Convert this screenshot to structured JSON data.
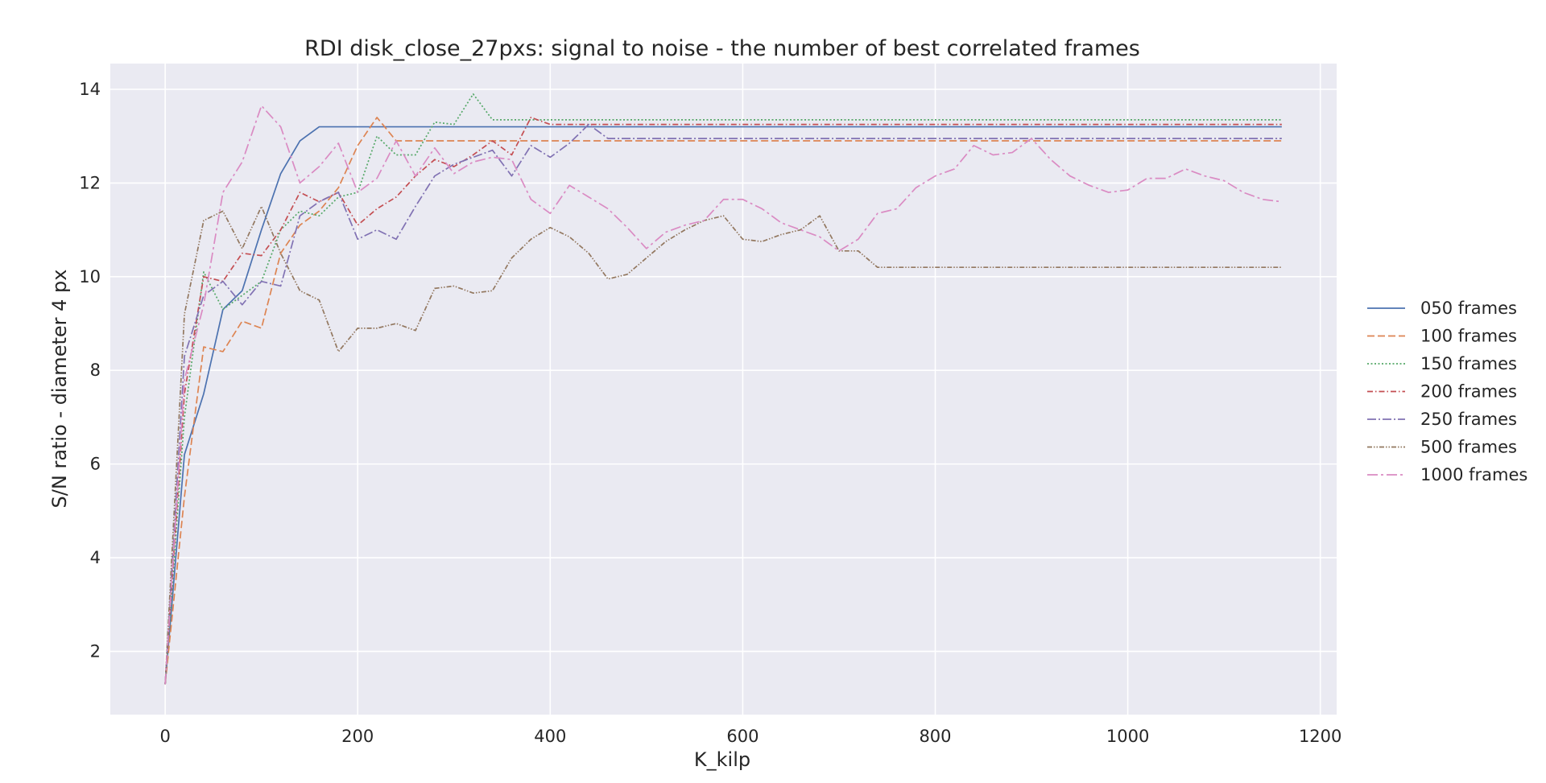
{
  "chart_data": {
    "type": "line",
    "title": "RDI disk_close_27pxs: signal to noise - the number of best correlated frames",
    "xlabel": "K_kilp",
    "ylabel": "S/N ratio - diameter 4 px",
    "xlim": [
      -57,
      1217
    ],
    "ylim": [
      0.65,
      14.55
    ],
    "xticks": [
      0,
      200,
      400,
      600,
      800,
      1000,
      1200
    ],
    "yticks": [
      2,
      4,
      6,
      8,
      10,
      12,
      14
    ],
    "grid": true,
    "legend_position": "right-outside",
    "x": [
      0,
      20,
      40,
      60,
      80,
      100,
      120,
      140,
      160,
      180,
      200,
      220,
      240,
      260,
      280,
      300,
      320,
      340,
      360,
      380,
      400,
      420,
      440,
      460,
      480,
      500,
      520,
      540,
      560,
      580,
      600,
      620,
      640,
      660,
      680,
      700,
      720,
      740,
      760,
      780,
      800,
      820,
      840,
      860,
      880,
      900,
      920,
      940,
      960,
      980,
      1000,
      1020,
      1040,
      1060,
      1080,
      1100,
      1120,
      1140,
      1160
    ],
    "series": [
      {
        "name": "050 frames",
        "color": "#4c72b0",
        "dash": "",
        "values": [
          1.3,
          6.2,
          7.5,
          9.3,
          9.7,
          11.0,
          12.2,
          12.9,
          13.2,
          13.2,
          13.2,
          13.2,
          13.2,
          13.2,
          13.2,
          13.2,
          13.2,
          13.2,
          13.2,
          13.2,
          13.2,
          13.2,
          13.2,
          13.2,
          13.2,
          13.2,
          13.2,
          13.2,
          13.2,
          13.2,
          13.2,
          13.2,
          13.2,
          13.2,
          13.2,
          13.2,
          13.2,
          13.2,
          13.2,
          13.2,
          13.2,
          13.2,
          13.2,
          13.2,
          13.2,
          13.2,
          13.2,
          13.2,
          13.2,
          13.2,
          13.2,
          13.2,
          13.2,
          13.2,
          13.2,
          13.2,
          13.2,
          13.2,
          13.2
        ]
      },
      {
        "name": "100 frames",
        "color": "#dd8452",
        "dash": "9,4",
        "values": [
          1.3,
          5.3,
          8.5,
          8.4,
          9.05,
          8.9,
          10.5,
          11.1,
          11.4,
          11.9,
          12.8,
          13.4,
          12.9,
          12.9,
          12.9,
          12.9,
          12.9,
          12.9,
          12.9,
          12.9,
          12.9,
          12.9,
          12.9,
          12.9,
          12.9,
          12.9,
          12.9,
          12.9,
          12.9,
          12.9,
          12.9,
          12.9,
          12.9,
          12.9,
          12.9,
          12.9,
          12.9,
          12.9,
          12.9,
          12.9,
          12.9,
          12.9,
          12.9,
          12.9,
          12.9,
          12.9,
          12.9,
          12.9,
          12.9,
          12.9,
          12.9,
          12.9,
          12.9,
          12.9,
          12.9,
          12.9,
          12.9,
          12.9,
          12.9
        ]
      },
      {
        "name": "150 frames",
        "color": "#55a868",
        "dash": "2,2.5",
        "values": [
          1.3,
          7.0,
          10.1,
          9.3,
          9.6,
          9.9,
          11.0,
          11.4,
          11.3,
          11.7,
          11.8,
          13.0,
          12.6,
          12.6,
          13.3,
          13.25,
          13.9,
          13.35,
          13.35,
          13.35,
          13.35,
          13.35,
          13.35,
          13.35,
          13.35,
          13.35,
          13.35,
          13.35,
          13.35,
          13.35,
          13.35,
          13.35,
          13.35,
          13.35,
          13.35,
          13.35,
          13.35,
          13.35,
          13.35,
          13.35,
          13.35,
          13.35,
          13.35,
          13.35,
          13.35,
          13.35,
          13.35,
          13.35,
          13.35,
          13.35,
          13.35,
          13.35,
          13.35,
          13.35,
          13.35,
          13.35,
          13.35,
          13.35,
          13.35
        ]
      },
      {
        "name": "200 frames",
        "color": "#c44e52",
        "dash": "7,3,1.5,3",
        "values": [
          1.3,
          7.5,
          10.0,
          9.9,
          10.5,
          10.45,
          11.0,
          11.8,
          11.6,
          11.8,
          11.1,
          11.45,
          11.7,
          12.15,
          12.5,
          12.35,
          12.6,
          12.9,
          12.6,
          13.4,
          13.25,
          13.25,
          13.25,
          13.25,
          13.25,
          13.25,
          13.25,
          13.25,
          13.25,
          13.25,
          13.25,
          13.25,
          13.25,
          13.25,
          13.25,
          13.25,
          13.25,
          13.25,
          13.25,
          13.25,
          13.25,
          13.25,
          13.25,
          13.25,
          13.25,
          13.25,
          13.25,
          13.25,
          13.25,
          13.25,
          13.25,
          13.25,
          13.25,
          13.25,
          13.25,
          13.25,
          13.25,
          13.25,
          13.25
        ]
      },
      {
        "name": "250 frames",
        "color": "#8172b3",
        "dash": "11,3,2,3",
        "values": [
          1.3,
          8.3,
          9.6,
          9.9,
          9.4,
          9.9,
          9.8,
          11.3,
          11.6,
          11.8,
          10.8,
          11.0,
          10.8,
          11.5,
          12.15,
          12.4,
          12.55,
          12.7,
          12.15,
          12.8,
          12.55,
          12.85,
          13.25,
          12.95,
          12.95,
          12.95,
          12.95,
          12.95,
          12.95,
          12.95,
          12.95,
          12.95,
          12.95,
          12.95,
          12.95,
          12.95,
          12.95,
          12.95,
          12.95,
          12.95,
          12.95,
          12.95,
          12.95,
          12.95,
          12.95,
          12.95,
          12.95,
          12.95,
          12.95,
          12.95,
          12.95,
          12.95,
          12.95,
          12.95,
          12.95,
          12.95,
          12.95,
          12.95,
          12.95
        ]
      },
      {
        "name": "500 frames",
        "color": "#937860",
        "dash": "6,2,1.5,2,1.5,2",
        "values": [
          1.3,
          9.2,
          11.2,
          11.4,
          10.6,
          11.5,
          10.5,
          9.7,
          9.5,
          8.4,
          8.9,
          8.9,
          9.0,
          8.85,
          9.75,
          9.8,
          9.65,
          9.7,
          10.4,
          10.8,
          11.05,
          10.85,
          10.5,
          9.95,
          10.05,
          10.4,
          10.75,
          11.0,
          11.2,
          11.3,
          10.8,
          10.75,
          10.9,
          11.0,
          11.3,
          10.55,
          10.55,
          10.2,
          10.2,
          10.2,
          10.2,
          10.2,
          10.2,
          10.2,
          10.2,
          10.2,
          10.2,
          10.2,
          10.2,
          10.2,
          10.2,
          10.2,
          10.2,
          10.2,
          10.2,
          10.2,
          10.2,
          10.2,
          10.2
        ]
      },
      {
        "name": "1000 frames",
        "color": "#da8bc3",
        "dash": "13,4,3,4",
        "values": [
          1.3,
          7.8,
          9.4,
          11.8,
          12.45,
          13.65,
          13.2,
          12.0,
          12.35,
          12.85,
          11.8,
          12.1,
          12.9,
          12.15,
          12.75,
          12.2,
          12.45,
          12.55,
          12.5,
          11.65,
          11.35,
          11.95,
          11.7,
          11.45,
          11.05,
          10.6,
          10.95,
          11.1,
          11.2,
          11.65,
          11.65,
          11.45,
          11.15,
          11.0,
          10.85,
          10.55,
          10.8,
          11.35,
          11.45,
          11.9,
          12.15,
          12.3,
          12.8,
          12.6,
          12.65,
          12.95,
          12.5,
          12.15,
          11.95,
          11.8,
          11.85,
          12.1,
          12.1,
          12.3,
          12.15,
          12.05,
          11.8,
          11.65,
          11.6
        ]
      }
    ]
  }
}
